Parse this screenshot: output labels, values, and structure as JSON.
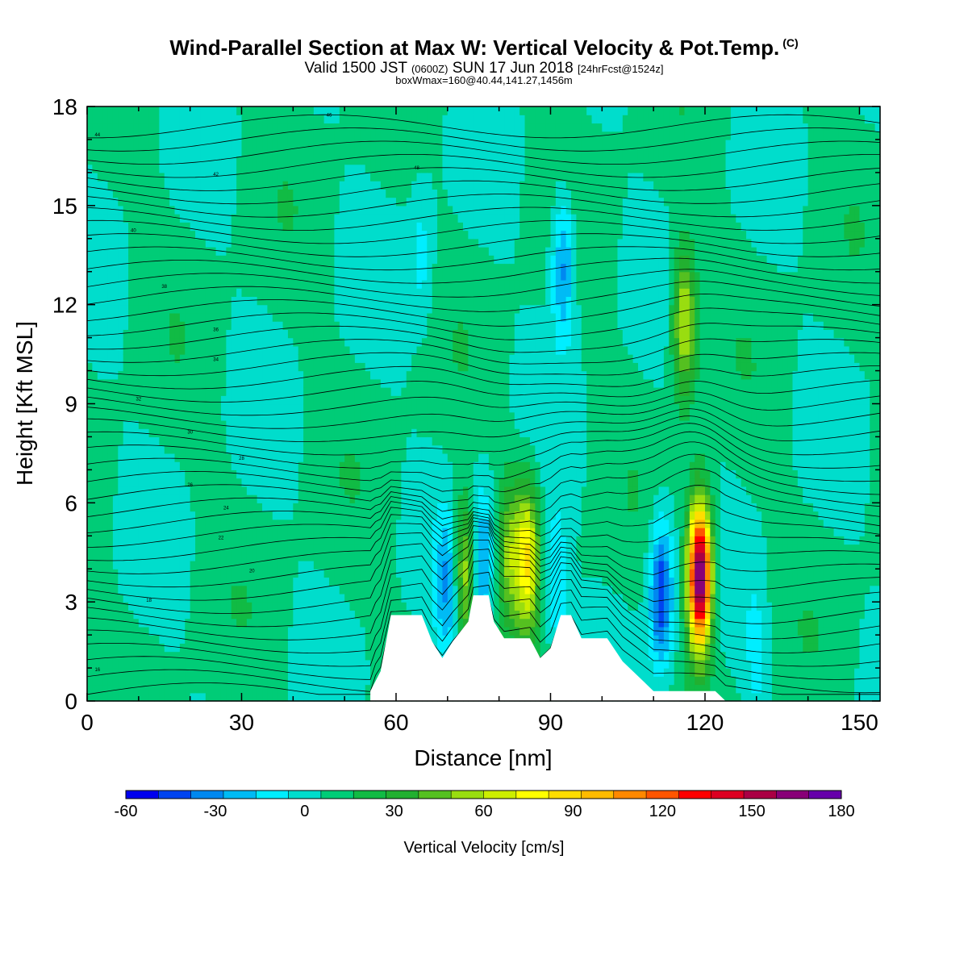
{
  "header": {
    "title": "Wind-Parallel Section at Max W: Vertical Velocity & Pot.Temp.",
    "title_mark": "(C)",
    "valid_a": "Valid 1500 JST",
    "valid_zulu": "(0600Z)",
    "valid_b": "SUN 17 Jun 2018",
    "forecast": "[24hrFcst@1524z]",
    "box_info": "boxWmax=160@40.44,141.27,1456m"
  },
  "chart_data": {
    "type": "heatmap",
    "xlabel": "Distance [nm]",
    "ylabel": "Height [Kft MSL]",
    "xlim": [
      0,
      154
    ],
    "ylim": [
      0,
      18
    ],
    "x_ticks": [
      0,
      30,
      60,
      90,
      120,
      150
    ],
    "y_ticks": [
      0,
      3,
      6,
      9,
      12,
      15,
      18
    ],
    "colorbar": {
      "label": "Vertical Velocity [cm/s]",
      "min": -60,
      "max": 180,
      "step": 10,
      "tick_labels": [
        "-60",
        "-30",
        "0",
        "30",
        "60",
        "90",
        "120",
        "150",
        "180"
      ],
      "colors": [
        "#0000ee",
        "#0044f0",
        "#0088f0",
        "#00bbf5",
        "#00eeff",
        "#00ddcc",
        "#00cc77",
        "#11bb44",
        "#22b030",
        "#55c020",
        "#99dd10",
        "#ccee00",
        "#ffff00",
        "#ffdd00",
        "#ffbb00",
        "#ff8800",
        "#ff5500",
        "#ff0000",
        "#dd0022",
        "#aa0044",
        "#880077",
        "#6600aa"
      ]
    },
    "terrain": [
      [
        55,
        0.3
      ],
      [
        57,
        0.9
      ],
      [
        59,
        2.6
      ],
      [
        65,
        2.6
      ],
      [
        67,
        1.8
      ],
      [
        69,
        1.3
      ],
      [
        71,
        1.8
      ],
      [
        74,
        2.4
      ],
      [
        75,
        3.2
      ],
      [
        78,
        3.2
      ],
      [
        79,
        2.4
      ],
      [
        81,
        1.9
      ],
      [
        86,
        1.9
      ],
      [
        88,
        1.3
      ],
      [
        90,
        1.6
      ],
      [
        92,
        2.6
      ],
      [
        94,
        2.6
      ],
      [
        96,
        1.9
      ],
      [
        101,
        1.9
      ],
      [
        104,
        1.2
      ],
      [
        108,
        0.6
      ],
      [
        110,
        0.3
      ],
      [
        122,
        0.3
      ],
      [
        124,
        0.0
      ]
    ],
    "w_features": [
      {
        "x": 73.5,
        "z": 3.9,
        "w": 55
      },
      {
        "x": 76.5,
        "z": 4.2,
        "w": -40
      },
      {
        "x": 85.5,
        "z": 4.4,
        "w": 62
      },
      {
        "x": 82,
        "z": 4.6,
        "w": 35
      },
      {
        "x": 91,
        "z": 3.5,
        "w": -25
      },
      {
        "x": 92.5,
        "z": 13.2,
        "w": -38
      },
      {
        "x": 111.5,
        "z": 3.3,
        "w": -52
      },
      {
        "x": 119,
        "z": 3.8,
        "w": 160
      },
      {
        "x": 116,
        "z": 11.5,
        "w": 55
      },
      {
        "x": 70,
        "z": 3.4,
        "w": -30
      },
      {
        "x": 65,
        "z": 13.5,
        "w": -15
      },
      {
        "x": 130,
        "z": 1.5,
        "w": -15
      }
    ],
    "theta_labels": [
      "16",
      "18",
      "20",
      "22",
      "24",
      "26",
      "28",
      "30",
      "32",
      "34",
      "36",
      "38",
      "40",
      "42",
      "44",
      "46",
      "48"
    ]
  }
}
